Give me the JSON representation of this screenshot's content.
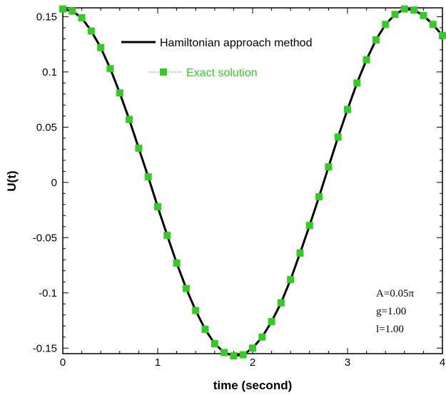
{
  "chart_data": {
    "type": "line",
    "xlabel": "time (second)",
    "ylabel": "U(t)",
    "xlim": [
      0,
      4
    ],
    "ylim": [
      -0.155,
      0.158
    ],
    "x_ticks": [
      "0",
      "1",
      "2",
      "3",
      "4"
    ],
    "y_ticks": [
      "0.15",
      "0.1",
      "0.05",
      "0",
      "-0.05",
      "-0.1",
      "-0.15"
    ],
    "grid": false,
    "legend_position": "top-right",
    "annotations": [
      "A=0.05π",
      "g=1.00",
      "l=1.00"
    ],
    "line_color": "#000000",
    "marker_color": "#33cc22",
    "series": [
      {
        "name": "Hamiltonian approach method",
        "style": "line",
        "x": [
          0,
          0.1,
          0.2,
          0.3,
          0.4,
          0.5,
          0.6,
          0.7,
          0.8,
          0.9,
          1.0,
          1.1,
          1.2,
          1.3,
          1.4,
          1.5,
          1.6,
          1.7,
          1.8,
          1.9,
          2.0,
          2.1,
          2.2,
          2.3,
          2.4,
          2.5,
          2.6,
          2.7,
          2.8,
          2.9,
          3.0,
          3.1,
          3.2,
          3.3,
          3.4,
          3.5,
          3.6,
          3.7,
          3.8,
          3.9,
          4.0
        ],
        "values": [
          0.157,
          0.155,
          0.149,
          0.137,
          0.122,
          0.103,
          0.081,
          0.057,
          0.031,
          0.005,
          -0.022,
          -0.048,
          -0.073,
          -0.096,
          -0.116,
          -0.133,
          -0.146,
          -0.154,
          -0.157,
          -0.156,
          -0.15,
          -0.14,
          -0.126,
          -0.109,
          -0.088,
          -0.064,
          -0.039,
          -0.013,
          0.014,
          0.041,
          0.066,
          0.09,
          0.111,
          0.129,
          0.143,
          0.152,
          0.157,
          0.156,
          0.151,
          0.143,
          0.133
        ]
      },
      {
        "name": "Exact solution",
        "style": "square-markers",
        "x": [
          0,
          0.1,
          0.2,
          0.3,
          0.4,
          0.5,
          0.6,
          0.7,
          0.8,
          0.9,
          1.0,
          1.1,
          1.2,
          1.3,
          1.4,
          1.5,
          1.6,
          1.7,
          1.8,
          1.9,
          2.0,
          2.1,
          2.2,
          2.3,
          2.4,
          2.5,
          2.6,
          2.7,
          2.8,
          2.9,
          3.0,
          3.1,
          3.2,
          3.3,
          3.4,
          3.5,
          3.6,
          3.7,
          3.8,
          3.9,
          4.0
        ],
        "values": [
          0.157,
          0.155,
          0.149,
          0.137,
          0.122,
          0.103,
          0.081,
          0.057,
          0.031,
          0.005,
          -0.022,
          -0.048,
          -0.073,
          -0.096,
          -0.116,
          -0.133,
          -0.146,
          -0.154,
          -0.157,
          -0.156,
          -0.15,
          -0.14,
          -0.126,
          -0.109,
          -0.088,
          -0.064,
          -0.039,
          -0.013,
          0.014,
          0.041,
          0.066,
          0.09,
          0.111,
          0.129,
          0.143,
          0.152,
          0.157,
          0.156,
          0.151,
          0.143,
          0.133
        ]
      }
    ]
  }
}
